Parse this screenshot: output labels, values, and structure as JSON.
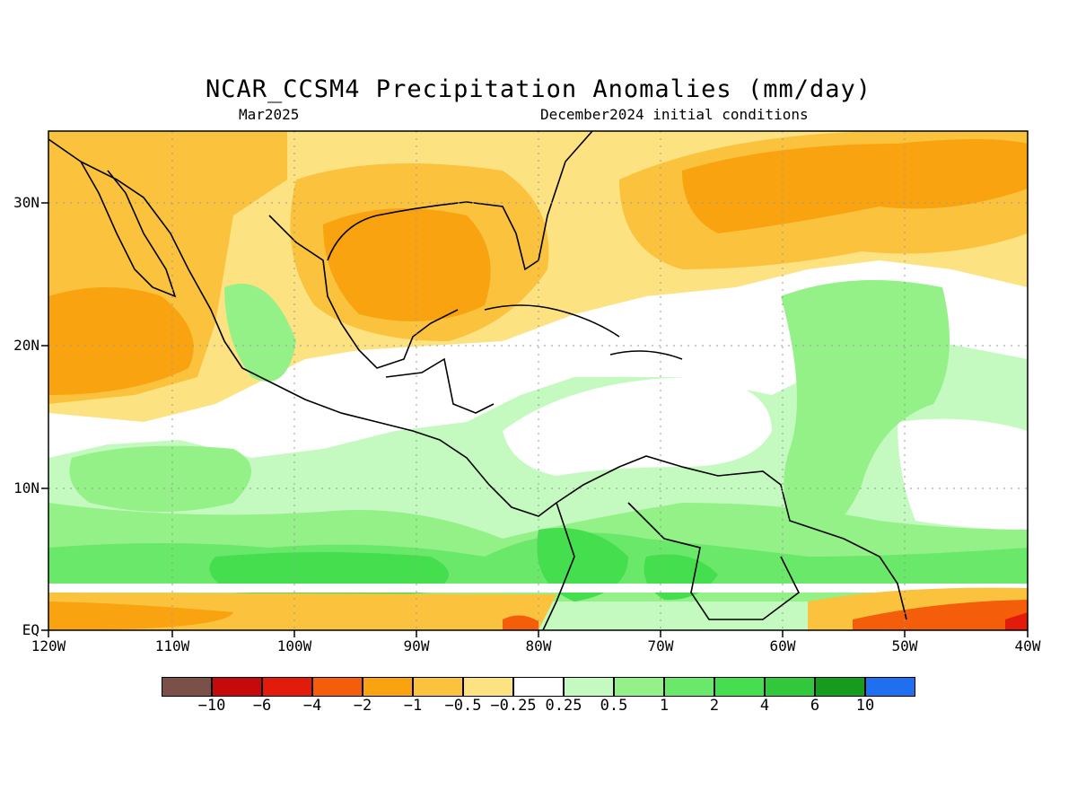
{
  "title": "NCAR_CCSM4 Precipitation Anomalies (mm/day)",
  "valid_month": "Mar2025",
  "init_conditions": "December2024 initial conditions",
  "lat_labels": [
    "30N",
    "20N",
    "10N",
    "EQ"
  ],
  "lon_labels": [
    "120W",
    "110W",
    "100W",
    "90W",
    "80W",
    "70W",
    "60W",
    "50W",
    "40W"
  ],
  "colorbar": {
    "colors": [
      "#7a5049",
      "#c40a0a",
      "#e31b0b",
      "#f45d09",
      "#f8a30f",
      "#fbc23e",
      "#fde282",
      "#ffffff",
      "#c4fac0",
      "#93f188",
      "#6ae86a",
      "#44de4f",
      "#31c83b",
      "#169c1c",
      "#1f6ff0"
    ],
    "labels": [
      "−10",
      "−6",
      "−4",
      "−2",
      "−1",
      "−0.5",
      "−0.25",
      "0.25",
      "0.5",
      "1",
      "2",
      "4",
      "6",
      "10"
    ]
  }
}
